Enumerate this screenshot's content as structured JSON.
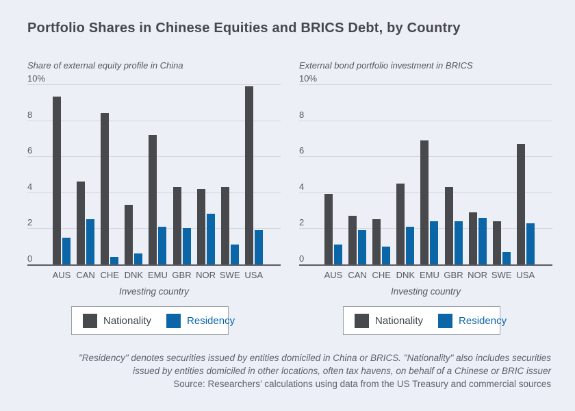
{
  "page": {
    "title": "Portfolio Shares in Chinese Equities and BRICS Debt, by Country",
    "background_color": "#edeff6"
  },
  "colors": {
    "nationality": "#48494d",
    "residency": "#0b66a8",
    "gridline": "#d2d6de",
    "axis": "#595b60"
  },
  "chart_data": [
    {
      "type": "bar",
      "title": "Share of external equity profile in China",
      "xlabel": "Investing country",
      "categories": [
        "AUS",
        "CAN",
        "CHE",
        "DNK",
        "EMU",
        "GBR",
        "NOR",
        "SWE",
        "USA"
      ],
      "series": [
        {
          "name": "Nationality",
          "color": "#48494d",
          "values": [
            9.3,
            4.6,
            8.4,
            3.3,
            7.2,
            4.3,
            4.2,
            4.3,
            9.9
          ]
        },
        {
          "name": "Residency",
          "color": "#0b66a8",
          "values": [
            1.5,
            2.5,
            0.4,
            0.6,
            2.1,
            2.0,
            2.8,
            1.1,
            1.9
          ]
        }
      ],
      "ylim": [
        0,
        10
      ],
      "yticks": [
        {
          "value": 0,
          "label": "0"
        },
        {
          "value": 2,
          "label": "2"
        },
        {
          "value": 4,
          "label": "4"
        },
        {
          "value": 6,
          "label": "6"
        },
        {
          "value": 8,
          "label": "8"
        },
        {
          "value": 10,
          "label": "10%"
        }
      ],
      "grid": true,
      "legend_position": "bottom"
    },
    {
      "type": "bar",
      "title": "External bond portfolio investment in BRICS",
      "xlabel": "Investing country",
      "categories": [
        "AUS",
        "CAN",
        "CHE",
        "DNK",
        "EMU",
        "GBR",
        "NOR",
        "SWE",
        "USA"
      ],
      "series": [
        {
          "name": "Nationality",
          "color": "#48494d",
          "values": [
            3.9,
            2.7,
            2.5,
            4.5,
            6.9,
            4.3,
            2.9,
            2.4,
            6.7
          ]
        },
        {
          "name": "Residency",
          "color": "#0b66a8",
          "values": [
            1.1,
            1.9,
            1.0,
            2.1,
            2.4,
            2.4,
            2.6,
            0.7,
            2.3
          ]
        }
      ],
      "ylim": [
        0,
        10
      ],
      "yticks": [
        {
          "value": 0,
          "label": "0"
        },
        {
          "value": 2,
          "label": "2"
        },
        {
          "value": 4,
          "label": "4"
        },
        {
          "value": 6,
          "label": "6"
        },
        {
          "value": 8,
          "label": "8"
        },
        {
          "value": 10,
          "label": "10%"
        }
      ],
      "grid": true,
      "legend_position": "bottom"
    }
  ],
  "footnote": {
    "line1": "\"Residency\" denotes securities issued by entities domiciled in China or BRICS. \"Nationality\" also includes securities",
    "line2": "issued by entities domiciled in other locations, often tax havens, on behalf of a Chinese or BRIC issuer",
    "source": "Source: Researchers’ calculations using data from the US Treasury and commercial sources"
  }
}
